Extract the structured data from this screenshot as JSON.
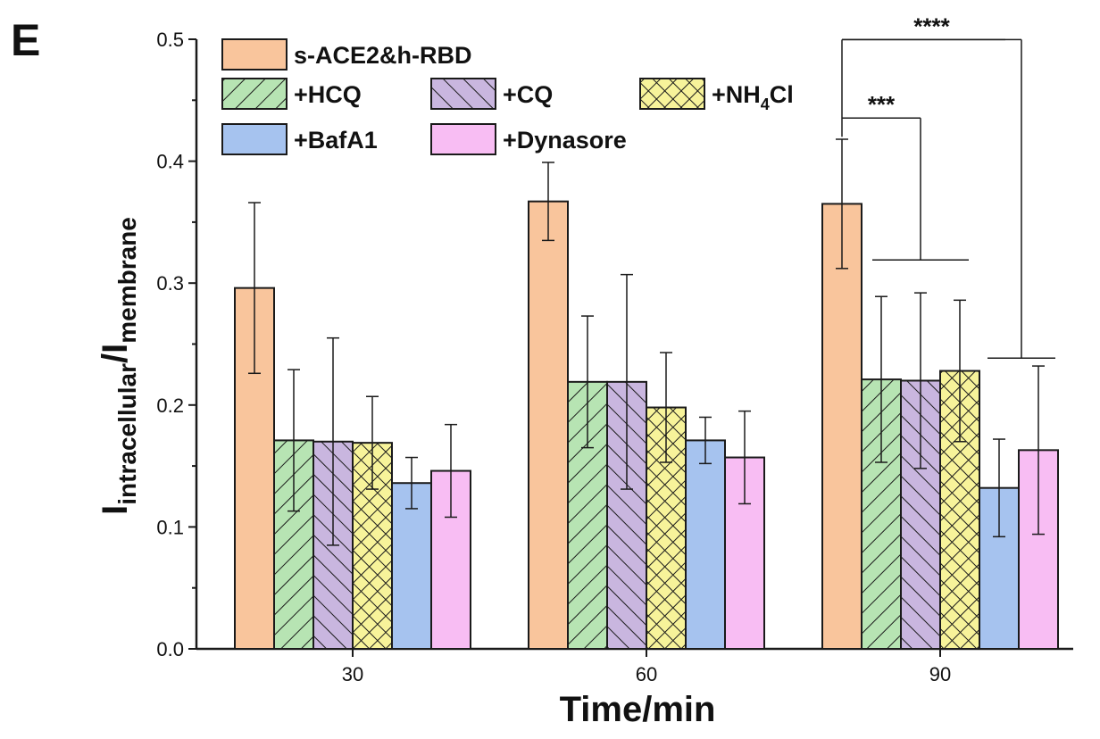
{
  "panel_label": "E",
  "chart_data": {
    "type": "bar",
    "title": "",
    "xlabel": "Time/min",
    "ylabel": {
      "main": "I",
      "sub1": "intracellular",
      "sep": "/I",
      "sub2": "membrane"
    },
    "categories": [
      "30",
      "60",
      "90"
    ],
    "ylim": [
      0,
      0.5
    ],
    "yticks": [
      "0.0",
      "0.1",
      "0.2",
      "0.3",
      "0.4",
      "0.5"
    ],
    "grid": false,
    "legend_position": "top-left",
    "series": [
      {
        "name": "s-ACE2&h-RBD",
        "values": [
          0.296,
          0.367,
          0.365
        ],
        "errors": [
          0.07,
          0.032,
          0.053
        ],
        "color": "#f9c59c",
        "pattern": "none"
      },
      {
        "name": "+HCQ",
        "values": [
          0.171,
          0.219,
          0.221
        ],
        "errors": [
          0.058,
          0.054,
          0.068
        ],
        "color": "#b7e4b3",
        "pattern": "diag-right"
      },
      {
        "name": "+CQ",
        "values": [
          0.17,
          0.219,
          0.22
        ],
        "errors": [
          0.085,
          0.088,
          0.072
        ],
        "color": "#c9b6df",
        "pattern": "diag-left"
      },
      {
        "name": "+NH4Cl",
        "legend_main": "+NH",
        "legend_sub": "4",
        "legend_tail": "Cl",
        "values": [
          0.169,
          0.198,
          0.228
        ],
        "errors": [
          0.038,
          0.045,
          0.058
        ],
        "color": "#f7f39a",
        "pattern": "crosshatch"
      },
      {
        "name": "+BafA1",
        "values": [
          0.136,
          0.171,
          0.132
        ],
        "errors": [
          0.021,
          0.019,
          0.04
        ],
        "color": "#a6c3ef",
        "pattern": "none"
      },
      {
        "name": "+Dynasore",
        "values": [
          0.146,
          0.157,
          0.163
        ],
        "errors": [
          0.038,
          0.038,
          0.069
        ],
        "color": "#f8bdf3",
        "pattern": "none"
      }
    ],
    "significance": [
      {
        "label": "***",
        "group": "90",
        "from": "s-ACE2&h-RBD",
        "to": "+HCQ, +CQ, +NH4Cl"
      },
      {
        "label": "****",
        "group": "90",
        "from": "s-ACE2&h-RBD",
        "to": "+BafA1, +Dynasore"
      }
    ]
  }
}
